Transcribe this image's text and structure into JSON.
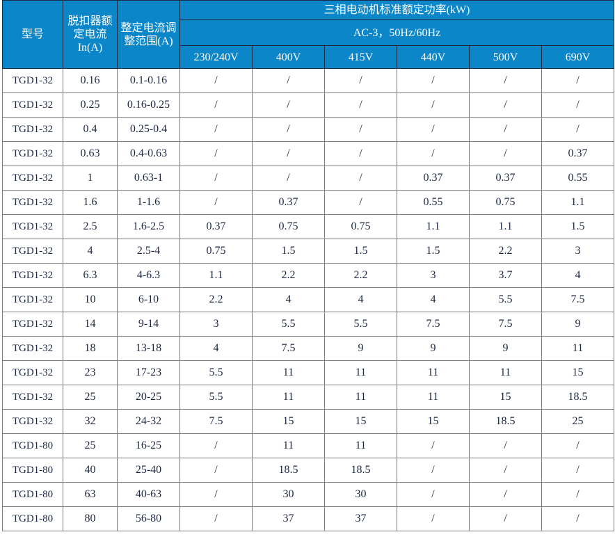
{
  "header": {
    "model": "型号",
    "rated_current": "脱扣器额定电流 In(A)",
    "setting_range": "整定电流调整范围(A)",
    "power_title": "三相电动机标准额定功率(kW)",
    "power_subtitle": "AC-3，50Hz/60Hz",
    "voltages": [
      "230/240V",
      "400V",
      "415V",
      "440V",
      "500V",
      "690V"
    ]
  },
  "rows": [
    [
      "TGD1-32",
      "0.16",
      "0.1-0.16",
      "/",
      "/",
      "/",
      "/",
      "/",
      "/"
    ],
    [
      "TGD1-32",
      "0.25",
      "0.16-0.25",
      "/",
      "/",
      "/",
      "/",
      "/",
      "/"
    ],
    [
      "TGD1-32",
      "0.4",
      "0.25-0.4",
      "/",
      "/",
      "/",
      "/",
      "/",
      "/"
    ],
    [
      "TGD1-32",
      "0.63",
      "0.4-0.63",
      "/",
      "/",
      "/",
      "/",
      "/",
      "0.37"
    ],
    [
      "TGD1-32",
      "1",
      "0.63-1",
      "/",
      "/",
      "/",
      "0.37",
      "0.37",
      "0.55"
    ],
    [
      "TGD1-32",
      "1.6",
      "1-1.6",
      "/",
      "0.37",
      "/",
      "0.55",
      "0.75",
      "1.1"
    ],
    [
      "TGD1-32",
      "2.5",
      "1.6-2.5",
      "0.37",
      "0.75",
      "0.75",
      "1.1",
      "1.1",
      "1.5"
    ],
    [
      "TGD1-32",
      "4",
      "2.5-4",
      "0.75",
      "1.5",
      "1.5",
      "1.5",
      "2.2",
      "3"
    ],
    [
      "TGD1-32",
      "6.3",
      "4-6.3",
      "1.1",
      "2.2",
      "2.2",
      "3",
      "3.7",
      "4"
    ],
    [
      "TGD1-32",
      "10",
      "6-10",
      "2.2",
      "4",
      "4",
      "4",
      "5.5",
      "7.5"
    ],
    [
      "TGD1-32",
      "14",
      "9-14",
      "3",
      "5.5",
      "5.5",
      "7.5",
      "7.5",
      "9"
    ],
    [
      "TGD1-32",
      "18",
      "13-18",
      "4",
      "7.5",
      "9",
      "9",
      "9",
      "11"
    ],
    [
      "TGD1-32",
      "23",
      "17-23",
      "5.5",
      "11",
      "11",
      "11",
      "11",
      "15"
    ],
    [
      "TGD1-32",
      "25",
      "20-25",
      "5.5",
      "11",
      "11",
      "11",
      "15",
      "18.5"
    ],
    [
      "TGD1-32",
      "32",
      "24-32",
      "7.5",
      "15",
      "15",
      "15",
      "18.5",
      "25"
    ],
    [
      "TGD1-80",
      "25",
      "16-25",
      "/",
      "11",
      "11",
      "/",
      "/",
      "/"
    ],
    [
      "TGD1-80",
      "40",
      "25-40",
      "/",
      "18.5",
      "18.5",
      "/",
      "/",
      "/"
    ],
    [
      "TGD1-80",
      "63",
      "40-63",
      "/",
      "30",
      "30",
      "/",
      "/",
      "/"
    ],
    [
      "TGD1-80",
      "80",
      "56-80",
      "/",
      "37",
      "37",
      "/",
      "/",
      "/"
    ]
  ]
}
